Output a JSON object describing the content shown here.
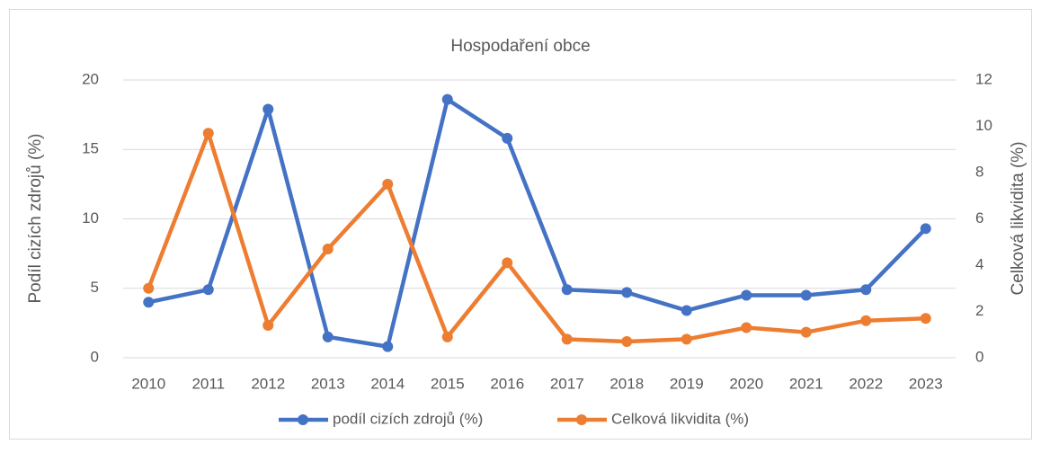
{
  "chart_data": {
    "type": "line",
    "title": "Hospodaření obce",
    "y_label": "Podíl cizích zdrojů (%)",
    "y2_label": "Celková likvidita (%)",
    "categories": [
      "2010",
      "2011",
      "2012",
      "2013",
      "2014",
      "2015",
      "2016",
      "2017",
      "2018",
      "2019",
      "2020",
      "2021",
      "2022",
      "2023"
    ],
    "series": [
      {
        "name": "podíl cizích zdrojů (%)",
        "color": "#4472c4",
        "values": [
          4.0,
          4.9,
          17.9,
          1.5,
          0.8,
          18.6,
          15.8,
          4.9,
          4.7,
          3.4,
          4.5,
          4.5,
          4.9,
          9.3
        ]
      },
      {
        "name": "Celková likvidita (%)",
        "color": "#ed7d31",
        "axis": "y2",
        "values": [
          3.0,
          9.7,
          1.4,
          4.7,
          7.5,
          0.9,
          4.1,
          0.8,
          0.7,
          0.8,
          1.3,
          1.1,
          1.6,
          1.7
        ]
      }
    ],
    "ylim": [
      0,
      20
    ],
    "yticks": [
      0,
      5,
      10,
      15,
      20
    ],
    "y2lim": [
      0,
      12
    ],
    "y2ticks": [
      0,
      2,
      4,
      6,
      8,
      10,
      12
    ],
    "grid": true,
    "legend": "bottom"
  }
}
